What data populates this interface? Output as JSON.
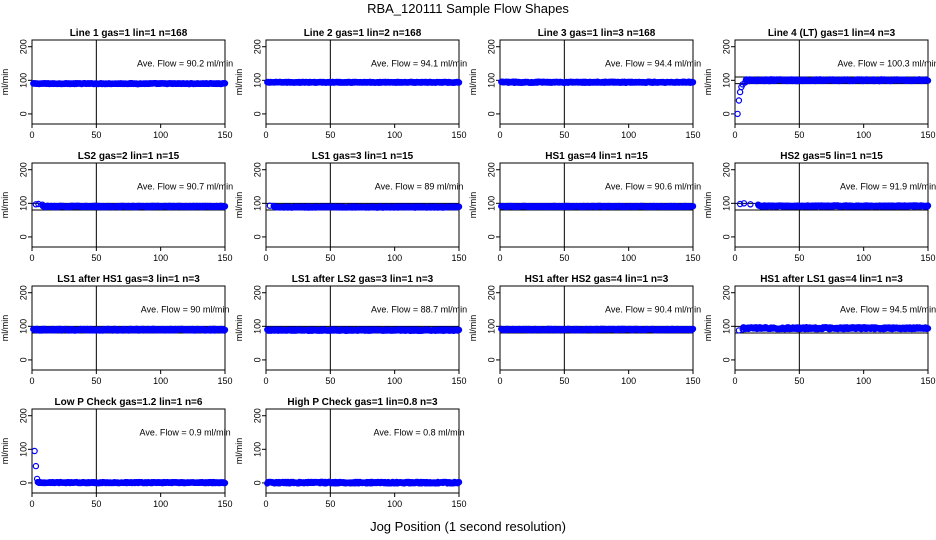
{
  "figure": {
    "title": "RBA_120111  Sample Flow Shapes",
    "xlabel": "Jog Position (1 second resolution)",
    "ylabel": "ml/min",
    "point_color": "#0000ff"
  },
  "chart_data": [
    {
      "type": "scatter",
      "title": "Line 1 gas=1 lin=1 n=168",
      "annotation": "Ave. Flow = 90.2  ml/min",
      "ylabel": "ml/min",
      "xlim": [
        0,
        150
      ],
      "ylim": [
        -30,
        220
      ],
      "xticks": [
        0,
        50,
        100,
        150
      ],
      "yticks": [
        0,
        100,
        200
      ],
      "vline": 50,
      "hlines": [],
      "series": [
        {
          "shape": "flat",
          "level": 90.2,
          "noise": 1.2
        }
      ]
    },
    {
      "type": "scatter",
      "title": "Line 2 gas=1 lin=2 n=168",
      "annotation": "Ave. Flow = 94.1  ml/min",
      "ylabel": "ml/min",
      "xlim": [
        0,
        150
      ],
      "ylim": [
        -30,
        220
      ],
      "xticks": [
        0,
        50,
        100,
        150
      ],
      "yticks": [
        0,
        100,
        200
      ],
      "vline": 50,
      "hlines": [],
      "series": [
        {
          "shape": "flat",
          "level": 94.1,
          "noise": 1.2
        }
      ]
    },
    {
      "type": "scatter",
      "title": "Line 3 gas=1 lin=3 n=168",
      "annotation": "Ave. Flow = 94.4  ml/min",
      "ylabel": "ml/min",
      "xlim": [
        0,
        150
      ],
      "ylim": [
        -30,
        220
      ],
      "xticks": [
        0,
        50,
        100,
        150
      ],
      "yticks": [
        0,
        100,
        200
      ],
      "vline": 50,
      "hlines": [],
      "series": [
        {
          "shape": "flat",
          "level": 94.4,
          "noise": 1.5
        }
      ]
    },
    {
      "type": "scatter",
      "title": "Line 4 (LT) gas=1 lin=4 n=3",
      "annotation": "Ave. Flow = 100.3  ml/min",
      "ylabel": "ml/min",
      "xlim": [
        0,
        150
      ],
      "ylim": [
        -30,
        220
      ],
      "xticks": [
        0,
        50,
        100,
        150
      ],
      "yticks": [
        0,
        100,
        200
      ],
      "vline": 50,
      "hlines": [
        90,
        110
      ],
      "series": [
        {
          "shape": "rampup",
          "level": 100.3,
          "noise": 2.5,
          "start": [
            [
              2,
              0
            ],
            [
              3,
              40
            ],
            [
              4,
              65
            ],
            [
              5,
              80
            ],
            [
              6,
              88
            ],
            [
              8,
              94
            ]
          ]
        }
      ]
    },
    {
      "type": "scatter",
      "title": "LS2 gas=2 lin=1 n=15",
      "annotation": "Ave. Flow = 90.7  ml/min",
      "ylabel": "ml/min",
      "xlim": [
        0,
        150
      ],
      "ylim": [
        -30,
        220
      ],
      "xticks": [
        0,
        50,
        100,
        150
      ],
      "yticks": [
        0,
        100,
        200
      ],
      "vline": 50,
      "hlines": [
        80,
        100
      ],
      "series": [
        {
          "shape": "flat",
          "level": 90.7,
          "noise": 2.0,
          "start": [
            [
              3,
              97
            ],
            [
              5,
              98
            ],
            [
              8,
              96
            ]
          ]
        }
      ]
    },
    {
      "type": "scatter",
      "title": "LS1 gas=3 lin=1 n=15",
      "annotation": "Ave. Flow =  89  ml/min",
      "ylabel": "ml/min",
      "xlim": [
        0,
        150
      ],
      "ylim": [
        -30,
        220
      ],
      "xticks": [
        0,
        50,
        100,
        150
      ],
      "yticks": [
        0,
        100,
        200
      ],
      "vline": 50,
      "hlines": [
        80,
        100
      ],
      "series": [
        {
          "shape": "flat",
          "level": 89,
          "noise": 1.5,
          "start": [
            [
              3,
              93
            ],
            [
              6,
              92
            ]
          ]
        }
      ]
    },
    {
      "type": "scatter",
      "title": "HS1 gas=4 lin=1 n=15",
      "annotation": "Ave. Flow = 90.6  ml/min",
      "ylabel": "ml/min",
      "xlim": [
        0,
        150
      ],
      "ylim": [
        -30,
        220
      ],
      "xticks": [
        0,
        50,
        100,
        150
      ],
      "yticks": [
        0,
        100,
        200
      ],
      "vline": 50,
      "hlines": [
        80,
        100
      ],
      "series": [
        {
          "shape": "flat",
          "level": 90.6,
          "noise": 1.5
        }
      ]
    },
    {
      "type": "scatter",
      "title": "HS2 gas=5 lin=1 n=15",
      "annotation": "Ave. Flow = 91.9  ml/min",
      "ylabel": "ml/min",
      "xlim": [
        0,
        150
      ],
      "ylim": [
        -30,
        220
      ],
      "xticks": [
        0,
        50,
        100,
        150
      ],
      "yticks": [
        0,
        100,
        200
      ],
      "vline": 50,
      "hlines": [
        80,
        100
      ],
      "series": [
        {
          "shape": "flat",
          "level": 91.9,
          "noise": 1.8,
          "start": [
            [
              4,
              98
            ],
            [
              7,
              100
            ],
            [
              12,
              97
            ],
            [
              18,
              96
            ]
          ]
        }
      ]
    },
    {
      "type": "scatter",
      "title": "LS1 after HS1 gas=3 lin=1 n=3",
      "annotation": "Ave. Flow =  90  ml/min",
      "ylabel": "ml/min",
      "xlim": [
        0,
        150
      ],
      "ylim": [
        -30,
        220
      ],
      "xticks": [
        0,
        50,
        100,
        150
      ],
      "yticks": [
        0,
        100,
        200
      ],
      "vline": 50,
      "hlines": [
        80,
        100
      ],
      "series": [
        {
          "shape": "flat",
          "level": 90,
          "noise": 2.5
        }
      ]
    },
    {
      "type": "scatter",
      "title": "LS1 after LS2 gas=3 lin=1 n=3",
      "annotation": "Ave. Flow = 88.7  ml/min",
      "ylabel": "ml/min",
      "xlim": [
        0,
        150
      ],
      "ylim": [
        -30,
        220
      ],
      "xticks": [
        0,
        50,
        100,
        150
      ],
      "yticks": [
        0,
        100,
        200
      ],
      "vline": 50,
      "hlines": [
        80,
        100
      ],
      "series": [
        {
          "shape": "flat",
          "level": 88.7,
          "noise": 2.0
        }
      ]
    },
    {
      "type": "scatter",
      "title": "HS1 after HS2 gas=4 lin=1 n=3",
      "annotation": "Ave. Flow = 90.4  ml/min",
      "ylabel": "ml/min",
      "xlim": [
        0,
        150
      ],
      "ylim": [
        -30,
        220
      ],
      "xticks": [
        0,
        50,
        100,
        150
      ],
      "yticks": [
        0,
        100,
        200
      ],
      "vline": 50,
      "hlines": [
        80,
        100
      ],
      "series": [
        {
          "shape": "flat",
          "level": 90.4,
          "noise": 2.0
        }
      ]
    },
    {
      "type": "scatter",
      "title": "HS1 after LS1 gas=4 lin=1 n=3",
      "annotation": "Ave. Flow = 94.5  ml/min",
      "ylabel": "ml/min",
      "xlim": [
        0,
        150
      ],
      "ylim": [
        -30,
        220
      ],
      "xticks": [
        0,
        50,
        100,
        150
      ],
      "yticks": [
        0,
        100,
        200
      ],
      "vline": 50,
      "hlines": [
        80,
        100
      ],
      "series": [
        {
          "shape": "flat",
          "level": 94.5,
          "noise": 2.8,
          "start": [
            [
              3,
              88
            ],
            [
              6,
              91
            ]
          ]
        }
      ]
    },
    {
      "type": "scatter",
      "title": "Low P Check gas=1.2 lin=1 n=6",
      "annotation": "Ave. Flow =  0.9  ml/min",
      "ylabel": "ml/min",
      "xlim": [
        0,
        150
      ],
      "ylim": [
        -30,
        220
      ],
      "xticks": [
        0,
        50,
        100,
        150
      ],
      "yticks": [
        0,
        100,
        200
      ],
      "vline": 50,
      "hlines": [],
      "series": [
        {
          "shape": "flat",
          "level": 0.9,
          "noise": 1.5,
          "start": [
            [
              2,
              95
            ],
            [
              3,
              50
            ],
            [
              4,
              12
            ]
          ]
        }
      ]
    },
    {
      "type": "scatter",
      "title": "High P Check gas=1 lin=0.8 n=3",
      "annotation": "Ave. Flow =  0.8  ml/min",
      "ylabel": "ml/min",
      "xlim": [
        0,
        150
      ],
      "ylim": [
        -30,
        220
      ],
      "xticks": [
        0,
        50,
        100,
        150
      ],
      "yticks": [
        0,
        100,
        200
      ],
      "vline": 50,
      "hlines": [],
      "series": [
        {
          "shape": "flat",
          "level": 0.8,
          "noise": 2.2
        }
      ]
    }
  ]
}
